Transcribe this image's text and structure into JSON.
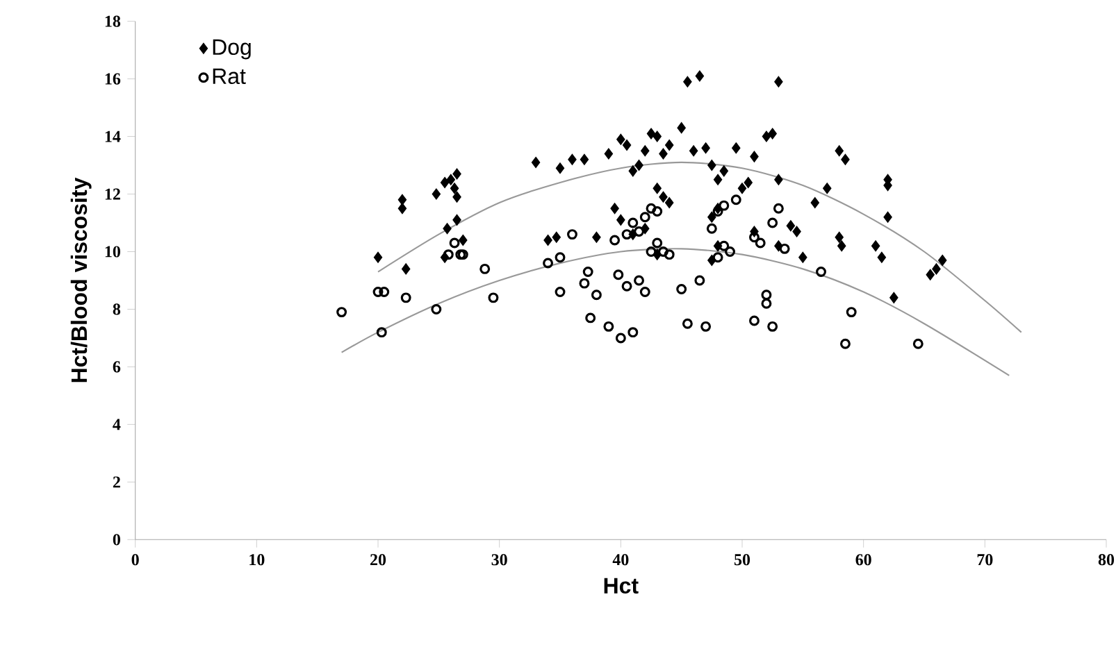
{
  "chart_data": {
    "type": "scatter",
    "xlabel": "Hct",
    "ylabel": "Hct/Blood viscosity",
    "xlim": [
      0,
      80
    ],
    "ylim": [
      0,
      18
    ],
    "xticks": [
      0,
      10,
      20,
      30,
      40,
      50,
      60,
      70,
      80
    ],
    "yticks": [
      0,
      2,
      4,
      6,
      8,
      10,
      12,
      14,
      16,
      18
    ],
    "grid": false,
    "legend": "top left",
    "series": [
      {
        "name": "Dog",
        "color": "#000000",
        "marker": "diamond",
        "x": [
          20,
          22,
          22,
          22.3,
          24.8,
          25.5,
          26,
          26.5,
          26.3,
          26.5,
          25.7,
          26.5,
          25.5,
          27,
          33,
          35,
          36,
          37,
          39,
          40,
          40.5,
          41,
          41.5,
          42,
          42.5,
          43,
          43.5,
          44,
          45,
          45.5,
          46.5,
          46,
          47,
          47.5,
          48,
          48.5,
          49.5,
          50,
          51,
          52,
          52.5,
          53,
          50.5,
          53,
          54,
          54.5,
          56,
          57,
          58,
          58.5,
          58,
          58.2,
          61,
          61.5,
          62,
          62,
          62,
          62.5,
          65.5,
          66,
          66.5,
          34,
          38,
          40,
          39.5,
          41,
          42,
          43,
          43.5,
          44,
          47.5,
          48,
          48,
          47.5,
          43,
          51,
          53,
          55,
          34.7
        ],
        "values": [
          9.8,
          11.5,
          11.8,
          9.4,
          12,
          12.4,
          12.5,
          12.7,
          12.2,
          11.9,
          10.8,
          11.1,
          9.8,
          10.4,
          13.1,
          12.9,
          13.2,
          13.2,
          13.4,
          13.9,
          13.7,
          12.8,
          13,
          13.5,
          14.1,
          14,
          13.4,
          13.7,
          14.3,
          15.9,
          16.1,
          13.5,
          13.6,
          13,
          12.5,
          12.8,
          13.6,
          12.2,
          13.3,
          14,
          14.1,
          15.9,
          12.4,
          12.5,
          10.9,
          10.7,
          11.7,
          12.2,
          13.5,
          13.2,
          10.5,
          10.2,
          10.2,
          9.8,
          12.3,
          12.5,
          11.2,
          8.4,
          9.2,
          9.4,
          9.7,
          10.4,
          10.5,
          11.1,
          11.5,
          10.6,
          10.8,
          12.2,
          11.9,
          11.7,
          11.2,
          11.5,
          10.2,
          9.7,
          9.9,
          10.7,
          10.2,
          9.8,
          10.5
        ]
      },
      {
        "name": "Rat",
        "color": "#000000",
        "marker": "circle",
        "x": [
          17,
          20,
          20.5,
          20.3,
          22.3,
          24.8,
          25.8,
          26.3,
          26.8,
          27,
          28.8,
          29.5,
          34,
          35,
          36,
          35,
          37,
          37.3,
          38,
          37.5,
          39,
          40,
          41,
          39.8,
          40.5,
          41.5,
          42,
          39.5,
          40.5,
          41,
          41.5,
          42,
          42.5,
          43,
          43,
          43.5,
          44,
          42.5,
          45,
          45.5,
          46.5,
          47,
          47.5,
          48,
          48.5,
          48,
          48.5,
          49,
          51,
          51.5,
          52,
          52,
          52.5,
          53,
          53.5,
          51,
          52.5,
          49.5,
          56.5,
          59,
          58.5,
          64.5
        ],
        "values": [
          7.9,
          8.6,
          8.6,
          7.2,
          8.4,
          8,
          9.9,
          10.3,
          9.9,
          9.9,
          9.4,
          8.4,
          9.6,
          9.8,
          10.6,
          8.6,
          8.9,
          9.3,
          8.5,
          7.7,
          7.4,
          7,
          7.2,
          9.2,
          8.8,
          9,
          8.6,
          10.4,
          10.6,
          11,
          10.7,
          11.2,
          11.5,
          11.4,
          10.3,
          10,
          9.9,
          10,
          8.7,
          7.5,
          9,
          7.4,
          10.8,
          11.4,
          11.6,
          9.8,
          10.2,
          10,
          10.5,
          10.3,
          8.5,
          8.2,
          11,
          11.5,
          10.1,
          7.6,
          7.4,
          11.8,
          9.3,
          7.9,
          6.8,
          6.8
        ]
      },
      {
        "type": "line",
        "color": "#999999",
        "marker": "none",
        "x": [
          20,
          25,
          30,
          35,
          40,
          45,
          50,
          55,
          60,
          65,
          70,
          73
        ],
        "values": [
          9.3,
          10.6,
          11.7,
          12.4,
          12.9,
          13.1,
          12.9,
          12.3,
          11.3,
          10,
          8.3,
          7.2
        ]
      },
      {
        "type": "line",
        "color": "#999999",
        "marker": "none",
        "x": [
          17,
          20,
          25,
          30,
          35,
          40,
          45,
          50,
          55,
          60,
          65,
          72
        ],
        "values": [
          6.5,
          7.2,
          8.2,
          9,
          9.6,
          10,
          10.1,
          9.9,
          9.4,
          8.6,
          7.5,
          5.7
        ]
      }
    ]
  }
}
